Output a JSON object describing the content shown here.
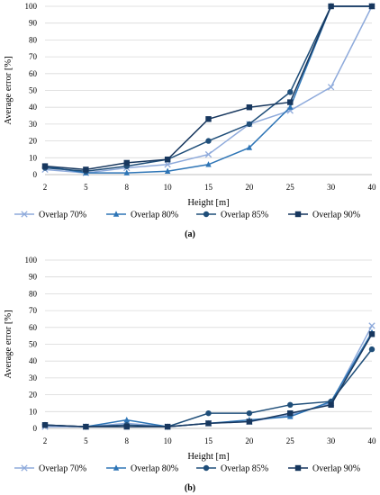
{
  "chart_data": [
    {
      "type": "line",
      "panel": "(a)",
      "xlabel": "Height [m]",
      "ylabel": "Average error [%]",
      "categories": [
        "2",
        "5",
        "8",
        "10",
        "15",
        "20",
        "25",
        "30",
        "40"
      ],
      "ylim": [
        0,
        100
      ],
      "yticks": [
        0,
        10,
        20,
        30,
        40,
        50,
        60,
        70,
        80,
        90,
        100
      ],
      "grid": true,
      "legend": "bottom",
      "series": [
        {
          "name": "Overlap 70%",
          "marker": "x",
          "color": "#8eaadb",
          "values": [
            3,
            1,
            4,
            6,
            12,
            30,
            38,
            52,
            100
          ]
        },
        {
          "name": "Overlap 80%",
          "marker": "triangle",
          "color": "#2e75b6",
          "values": [
            5,
            1,
            1,
            2,
            6,
            16,
            40,
            100,
            100
          ]
        },
        {
          "name": "Overlap 85%",
          "marker": "circle",
          "color": "#1f4e79",
          "values": [
            4,
            2,
            5,
            9,
            20,
            30,
            49,
            100,
            100
          ]
        },
        {
          "name": "Overlap 90%",
          "marker": "square",
          "color": "#17375e",
          "values": [
            5,
            3,
            7,
            9,
            33,
            40,
            43,
            100,
            100
          ]
        }
      ]
    },
    {
      "type": "line",
      "panel": "(b)",
      "xlabel": "Height [m]",
      "ylabel": "Average error [%]",
      "categories": [
        "2",
        "5",
        "8",
        "10",
        "15",
        "20",
        "25",
        "30",
        "40"
      ],
      "ylim": [
        0,
        100
      ],
      "yticks": [
        0,
        10,
        20,
        30,
        40,
        50,
        60,
        70,
        80,
        90,
        100
      ],
      "grid": true,
      "legend": "bottom",
      "series": [
        {
          "name": "Overlap 70%",
          "marker": "x",
          "color": "#8eaadb",
          "values": [
            1,
            1,
            3,
            1,
            3,
            4,
            8,
            15,
            61
          ]
        },
        {
          "name": "Overlap 80%",
          "marker": "triangle",
          "color": "#2e75b6",
          "values": [
            2,
            1,
            5,
            1,
            3,
            5,
            7,
            16,
            57
          ]
        },
        {
          "name": "Overlap 85%",
          "marker": "circle",
          "color": "#1f4e79",
          "values": [
            2,
            1,
            2,
            1,
            9,
            9,
            14,
            16,
            47
          ]
        },
        {
          "name": "Overlap 90%",
          "marker": "square",
          "color": "#17375e",
          "values": [
            2,
            1,
            1,
            1,
            3,
            4,
            9,
            14,
            56
          ]
        }
      ]
    }
  ]
}
